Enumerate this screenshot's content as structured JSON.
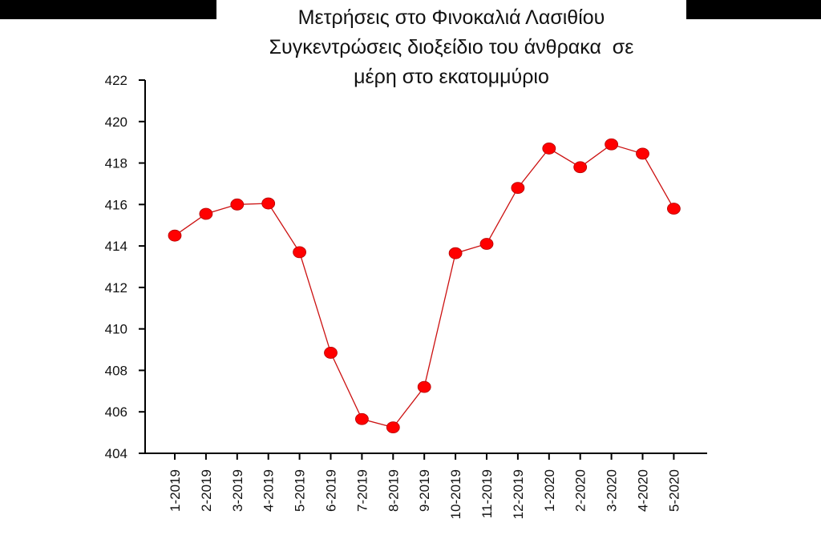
{
  "chart_data": {
    "type": "line",
    "title": [
      "Μετρήσεις στο Φινοκαλιά Λασιθίου",
      "Συγκεντρώσεις διοξείδιο του άνθρακα  σε",
      "μέρη στο εκατομμύριο"
    ],
    "categories": [
      "1-2019",
      "2-2019",
      "3-2019",
      "4-2019",
      "5-2019",
      "6-2019",
      "7-2019",
      "8-2019",
      "9-2019",
      "10-2019",
      "11-2019",
      "12-2019",
      "1-2020",
      "2-2020",
      "3-2020",
      "4-2020",
      "5-2020"
    ],
    "series": [
      {
        "values": [
          414.5,
          415.55,
          416.0,
          416.05,
          413.7,
          408.85,
          405.65,
          405.25,
          407.2,
          413.65,
          414.1,
          416.8,
          418.7,
          417.8,
          418.9,
          418.45,
          415.8
        ]
      }
    ],
    "ylim": [
      404,
      422
    ],
    "yticks": [
      "404",
      "406",
      "408",
      "410",
      "412",
      "414",
      "416",
      "418",
      "420",
      "422"
    ],
    "grid": false,
    "colors": {
      "line": "#cc1111",
      "marker": "#ff0000",
      "axis": "#000000"
    }
  }
}
